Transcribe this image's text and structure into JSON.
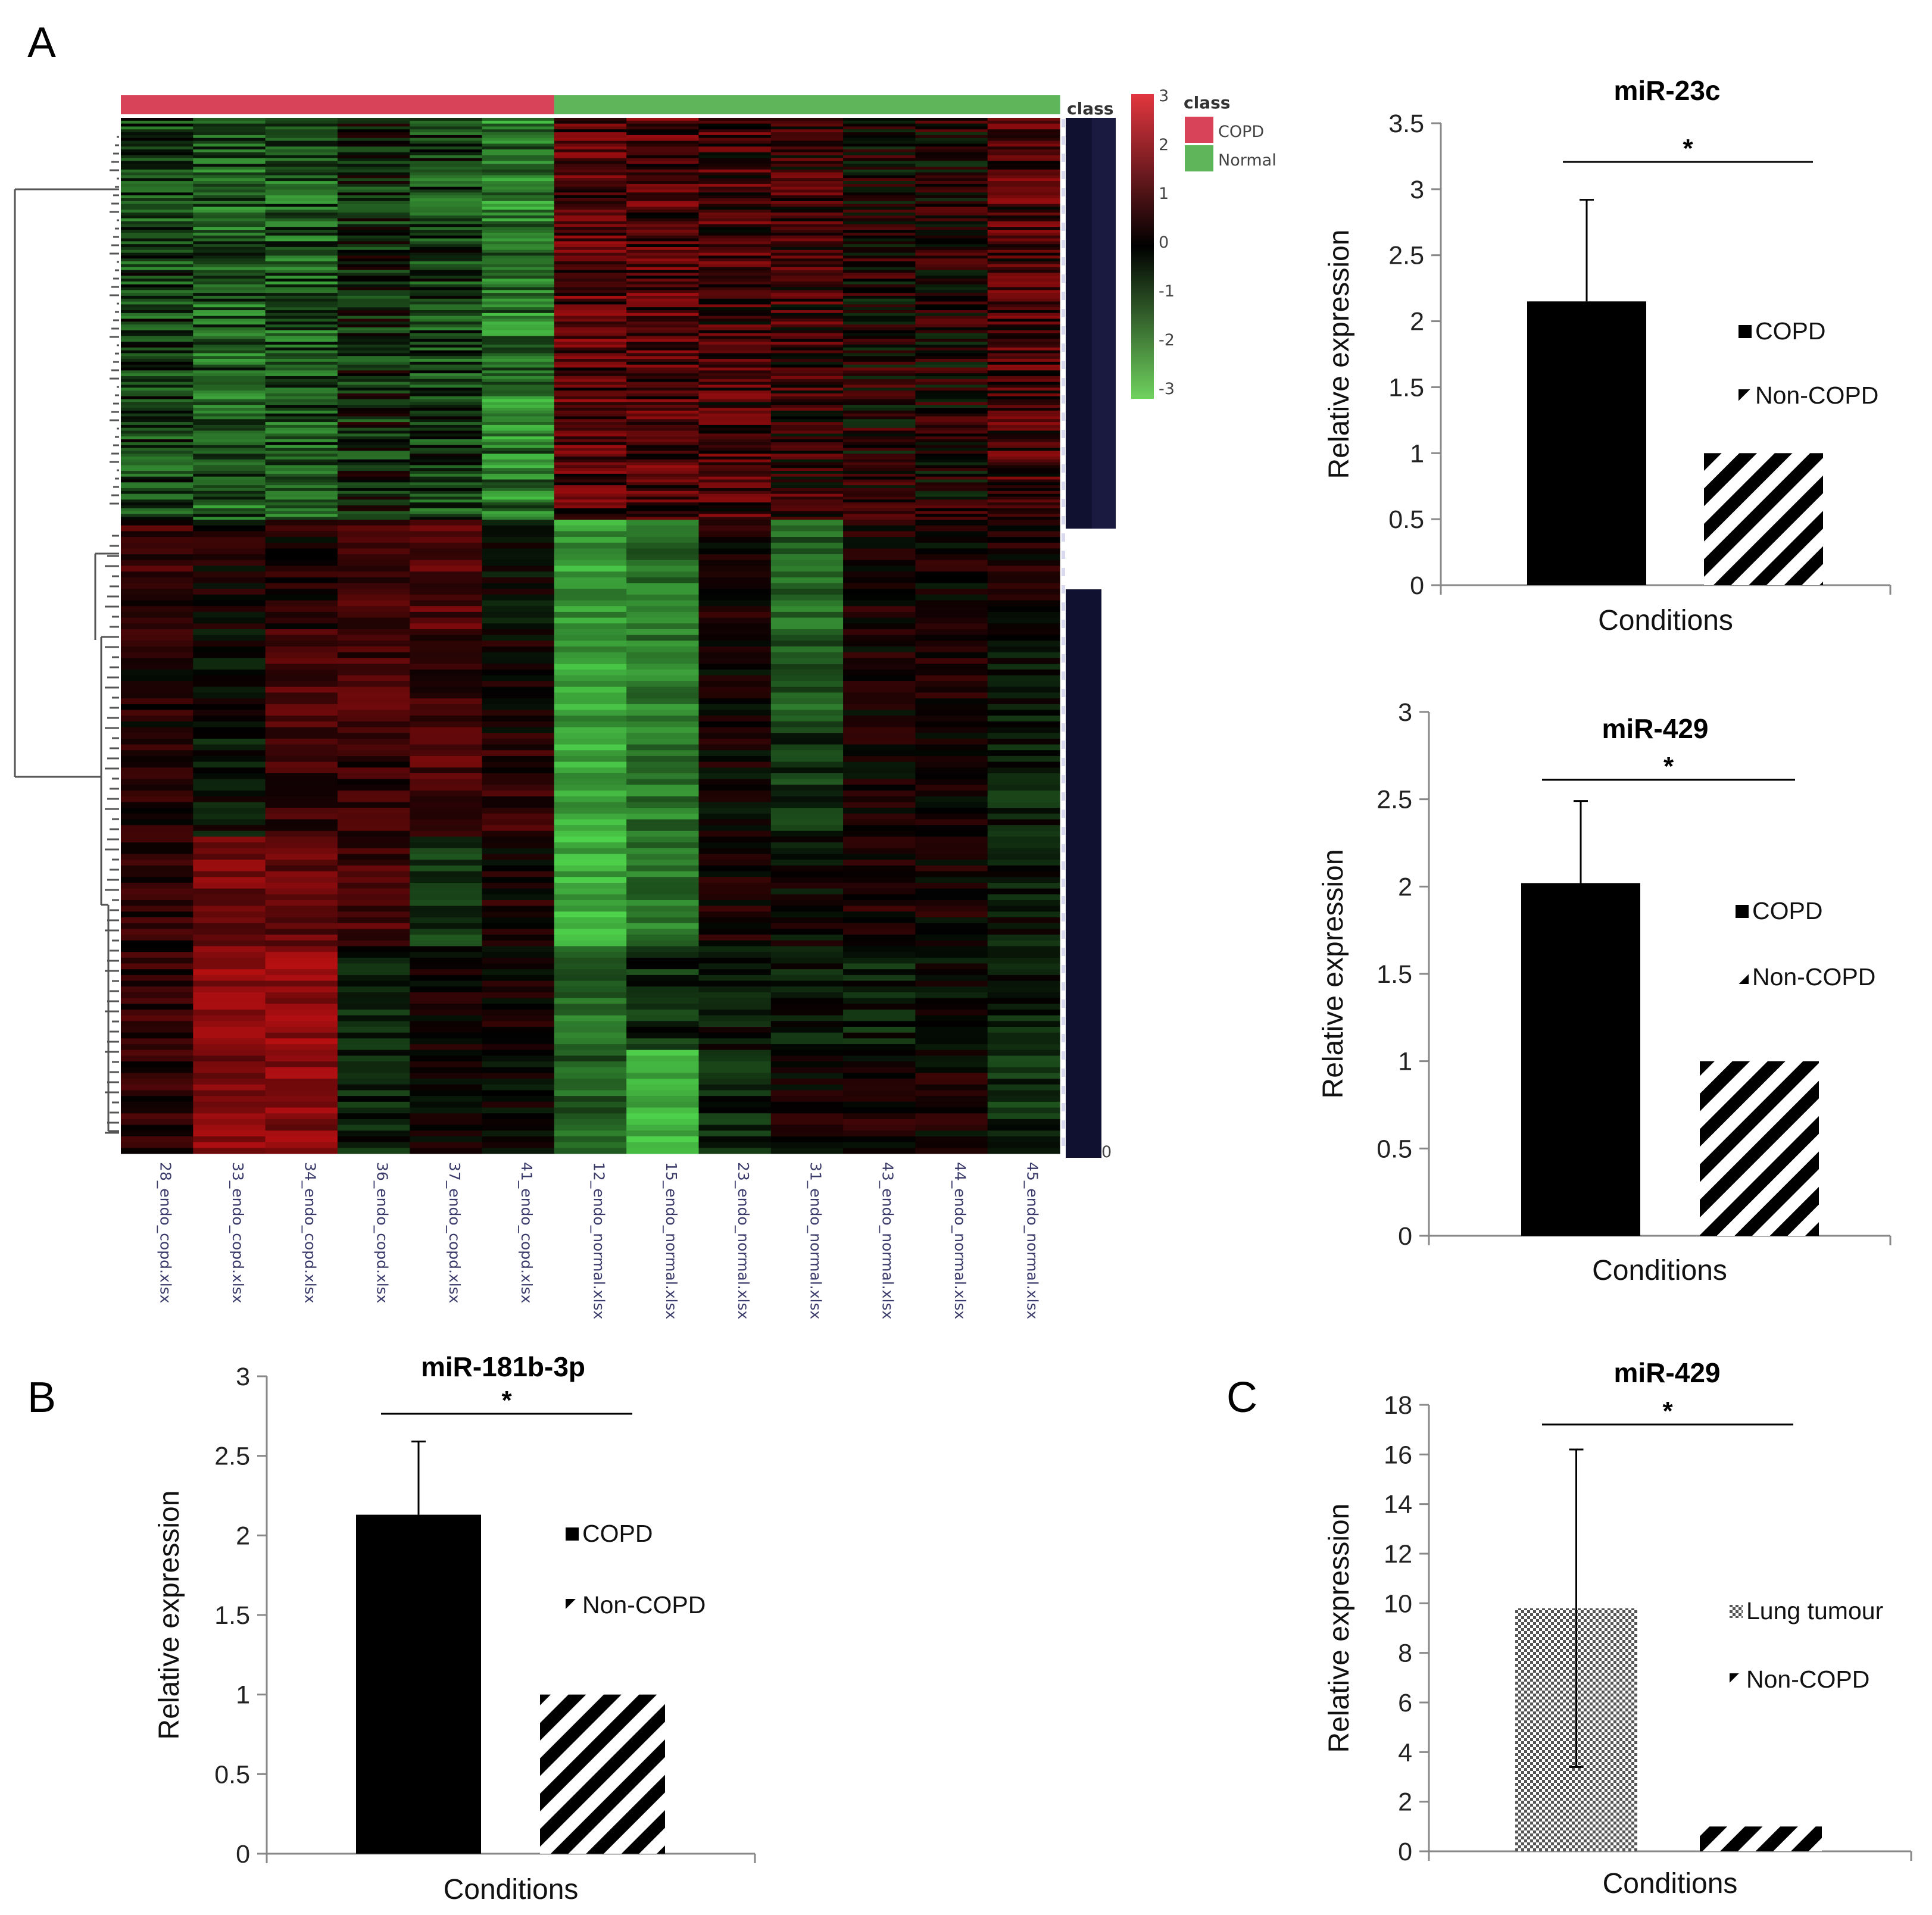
{
  "panels": {
    "a": "A",
    "b": "B",
    "c": "C"
  },
  "heatmap": {
    "class_header": "class",
    "legend_title": "class",
    "classes": [
      {
        "name": "COPD",
        "color": "#d8435a"
      },
      {
        "name": "Normal",
        "color": "#5fb65a"
      }
    ],
    "colorbar_ticks": [
      "3",
      "2",
      "1",
      "0",
      "-1",
      "-2",
      "-3"
    ],
    "colorbar_range": [
      -3,
      3
    ],
    "trailing_mark": "0",
    "samples": [
      {
        "id": "28",
        "label": "_endo_copd.xlsx",
        "group": "COPD"
      },
      {
        "id": "33",
        "label": "_endo_copd.xlsx",
        "group": "COPD"
      },
      {
        "id": "34",
        "label": "_endo_copd.xlsx",
        "group": "COPD"
      },
      {
        "id": "36",
        "label": "_endo_copd.xlsx",
        "group": "COPD"
      },
      {
        "id": "37",
        "label": "_endo_copd.xlsx",
        "group": "COPD"
      },
      {
        "id": "41",
        "label": "_endo_copd.xlsx",
        "group": "COPD"
      },
      {
        "id": "12",
        "label": "_endo_normal.xlsx",
        "group": "Normal"
      },
      {
        "id": "15",
        "label": "_endo_normal.xlsx",
        "group": "Normal"
      },
      {
        "id": "23",
        "label": "_endo_normal.xlsx",
        "group": "Normal"
      },
      {
        "id": "31",
        "label": "_endo_normal.xlsx",
        "group": "Normal"
      },
      {
        "id": "43",
        "label": "_endo_normal.xlsx",
        "group": "Normal"
      },
      {
        "id": "44",
        "label": "_endo_normal.xlsx",
        "group": "Normal"
      },
      {
        "id": "45",
        "label": "_endo_normal.xlsx",
        "group": "Normal"
      }
    ]
  },
  "colors": {
    "heat_high": "#e2363f",
    "heat_mid": "#000000",
    "heat_low": "#6fd25e",
    "bar_solid": "#000000"
  },
  "chart_data": [
    {
      "id": "mir23c",
      "type": "bar",
      "title": "miR-23c",
      "xlabel": "Conditions",
      "ylabel": "Relative expression",
      "ylim": [
        0,
        3.5
      ],
      "yticks": [
        "0",
        "0.5",
        "1",
        "1.5",
        "2",
        "2.5",
        "3",
        "3.5"
      ],
      "categories": [
        "COPD",
        "Non-COPD"
      ],
      "values": [
        2.15,
        1.0
      ],
      "error": [
        0.77,
        0
      ],
      "significance": "*",
      "legend": [
        "COPD",
        "Non-COPD"
      ]
    },
    {
      "id": "mir429",
      "type": "bar",
      "title": "miR-429",
      "xlabel": "Conditions",
      "ylabel": "Relative expression",
      "ylim": [
        0,
        3
      ],
      "yticks": [
        "0",
        "0.5",
        "1",
        "1.5",
        "2",
        "2.5",
        "3"
      ],
      "categories": [
        "COPD",
        "Non-COPD"
      ],
      "values": [
        2.02,
        1.0
      ],
      "error": [
        0.47,
        0
      ],
      "significance": "*",
      "legend": [
        "COPD",
        "Non-COPD"
      ]
    },
    {
      "id": "mir181b",
      "type": "bar",
      "title": "miR-181b-3p",
      "xlabel": "Conditions",
      "ylabel": "Relative expression",
      "ylim": [
        0,
        3
      ],
      "yticks": [
        "0",
        "0.5",
        "1",
        "1.5",
        "2",
        "2.5",
        "3"
      ],
      "categories": [
        "COPD",
        "Non-COPD"
      ],
      "values": [
        2.13,
        1.0
      ],
      "error": [
        0.46,
        0
      ],
      "significance": "*",
      "legend": [
        "COPD",
        "Non-COPD"
      ]
    },
    {
      "id": "mir429tumour",
      "type": "bar",
      "title": "miR-429",
      "xlabel": "Conditions",
      "ylabel": "Relative expression",
      "ylim": [
        0,
        18
      ],
      "yticks": [
        "0",
        "2",
        "4",
        "6",
        "8",
        "10",
        "12",
        "14",
        "16",
        "18"
      ],
      "categories": [
        "Lung tumour",
        "Non-COPD"
      ],
      "values": [
        9.8,
        1.0
      ],
      "error": [
        6.4,
        0
      ],
      "error_lower": [
        6.4,
        0
      ],
      "significance": "*",
      "legend": [
        "Lung tumour",
        "Non-COPD"
      ]
    }
  ]
}
